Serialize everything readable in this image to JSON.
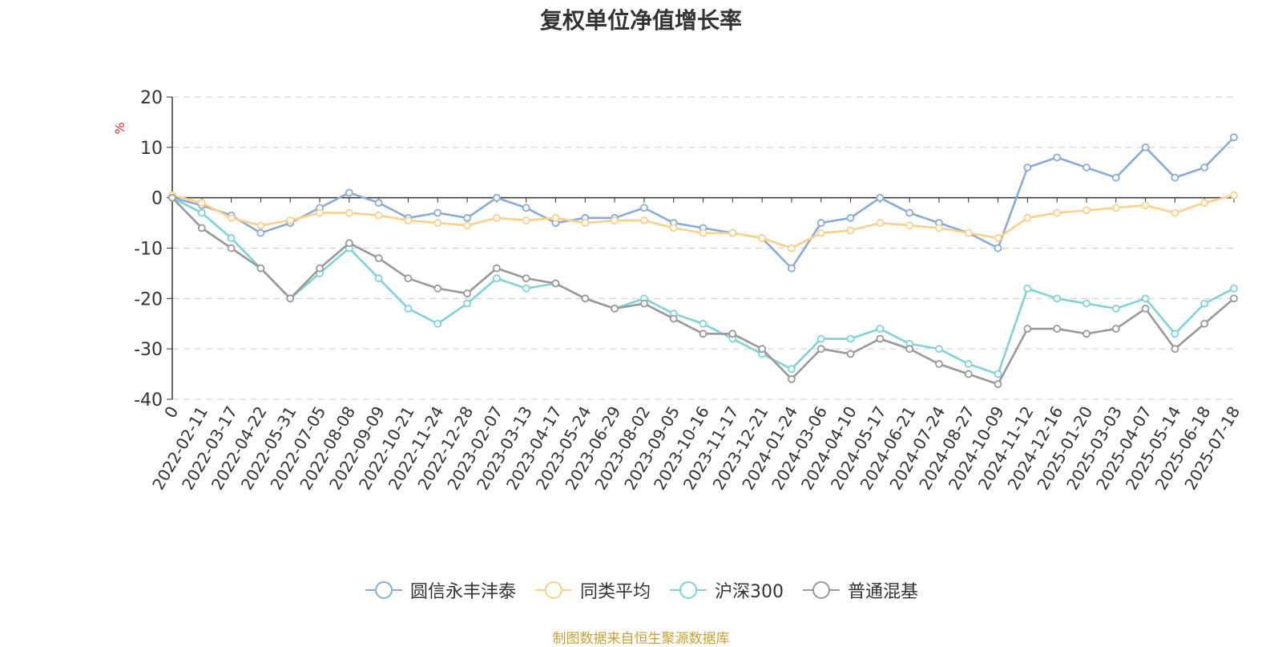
{
  "chart_data": {
    "type": "line",
    "title": "复权单位净值增长率",
    "ylabel": "%",
    "ylim": [
      -40,
      20
    ],
    "yticks": [
      20,
      10,
      0,
      -10,
      -20,
      -30,
      -40
    ],
    "xlabels": [
      "0",
      "2022-02-11",
      "2022-03-17",
      "2022-04-22",
      "2022-05-31",
      "2022-07-05",
      "2022-08-08",
      "2022-09-09",
      "2022-10-21",
      "2022-11-24",
      "2022-12-28",
      "2023-02-07",
      "2023-03-13",
      "2023-04-17",
      "2023-05-24",
      "2023-06-29",
      "2023-08-02",
      "2023-09-05",
      "2023-10-16",
      "2023-11-17",
      "2023-12-21",
      "2024-01-24",
      "2024-03-06",
      "2024-04-10",
      "2024-05-17",
      "2024-06-21",
      "2024-07-24",
      "2024-08-27",
      "2024-10-09",
      "2024-11-12",
      "2024-12-16",
      "2025-01-20",
      "2025-03-03",
      "2025-04-07",
      "2025-05-14",
      "2025-06-18",
      "2025-07-18"
    ],
    "grid": true,
    "legend_position": "bottom",
    "series": [
      {
        "name": "圆信永丰沣泰",
        "color": "#8aaad8",
        "values": [
          0,
          -1.5,
          -3.5,
          -7,
          -5,
          -2,
          1,
          -1,
          -4,
          -3,
          -4,
          0,
          -2,
          -5,
          -4,
          -4,
          -2,
          -5,
          -6,
          -7,
          -8,
          -14,
          -5,
          -4,
          0,
          -3,
          -5,
          -7,
          -10,
          6,
          8,
          6,
          4,
          10,
          4,
          6,
          12
        ]
      },
      {
        "name": "同类平均",
        "color": "#fdd08a",
        "values": [
          0.5,
          -1,
          -4,
          -5.5,
          -4.5,
          -3,
          -3,
          -3.5,
          -4.5,
          -5,
          -5.5,
          -4,
          -4.5,
          -4,
          -5,
          -4.5,
          -4.5,
          -6,
          -7,
          -7,
          -8,
          -10,
          -7,
          -6.5,
          -5,
          -5.5,
          -6,
          -7,
          -8,
          -4,
          -3,
          -2.5,
          -2,
          -1.5,
          -3,
          -1,
          0.5
        ]
      },
      {
        "name": "沪深300",
        "color": "#7fd3d6",
        "values": [
          0,
          -3,
          -8,
          -14,
          -20,
          -15,
          -10,
          -16,
          -22,
          -25,
          -21,
          -16,
          -18,
          -17,
          -20,
          -22,
          -20,
          -23,
          -25,
          -28,
          -31,
          -34,
          -28,
          -28,
          -26,
          -29,
          -30,
          -33,
          -35,
          -18,
          -20,
          -21,
          -22,
          -20,
          -27,
          -21,
          -18
        ]
      },
      {
        "name": "普通混基",
        "color": "#999999",
        "values": [
          0,
          -6,
          -10,
          -14,
          -20,
          -14,
          -9,
          -12,
          -16,
          -18,
          -19,
          -14,
          -16,
          -17,
          -20,
          -22,
          -21,
          -24,
          -27,
          -27,
          -30,
          -36,
          -30,
          -31,
          -28,
          -30,
          -33,
          -35,
          -37,
          -26,
          -26,
          -27,
          -26,
          -22,
          -30,
          -25,
          -20
        ]
      }
    ]
  },
  "source_note": "制图数据来自恒生聚源数据库"
}
